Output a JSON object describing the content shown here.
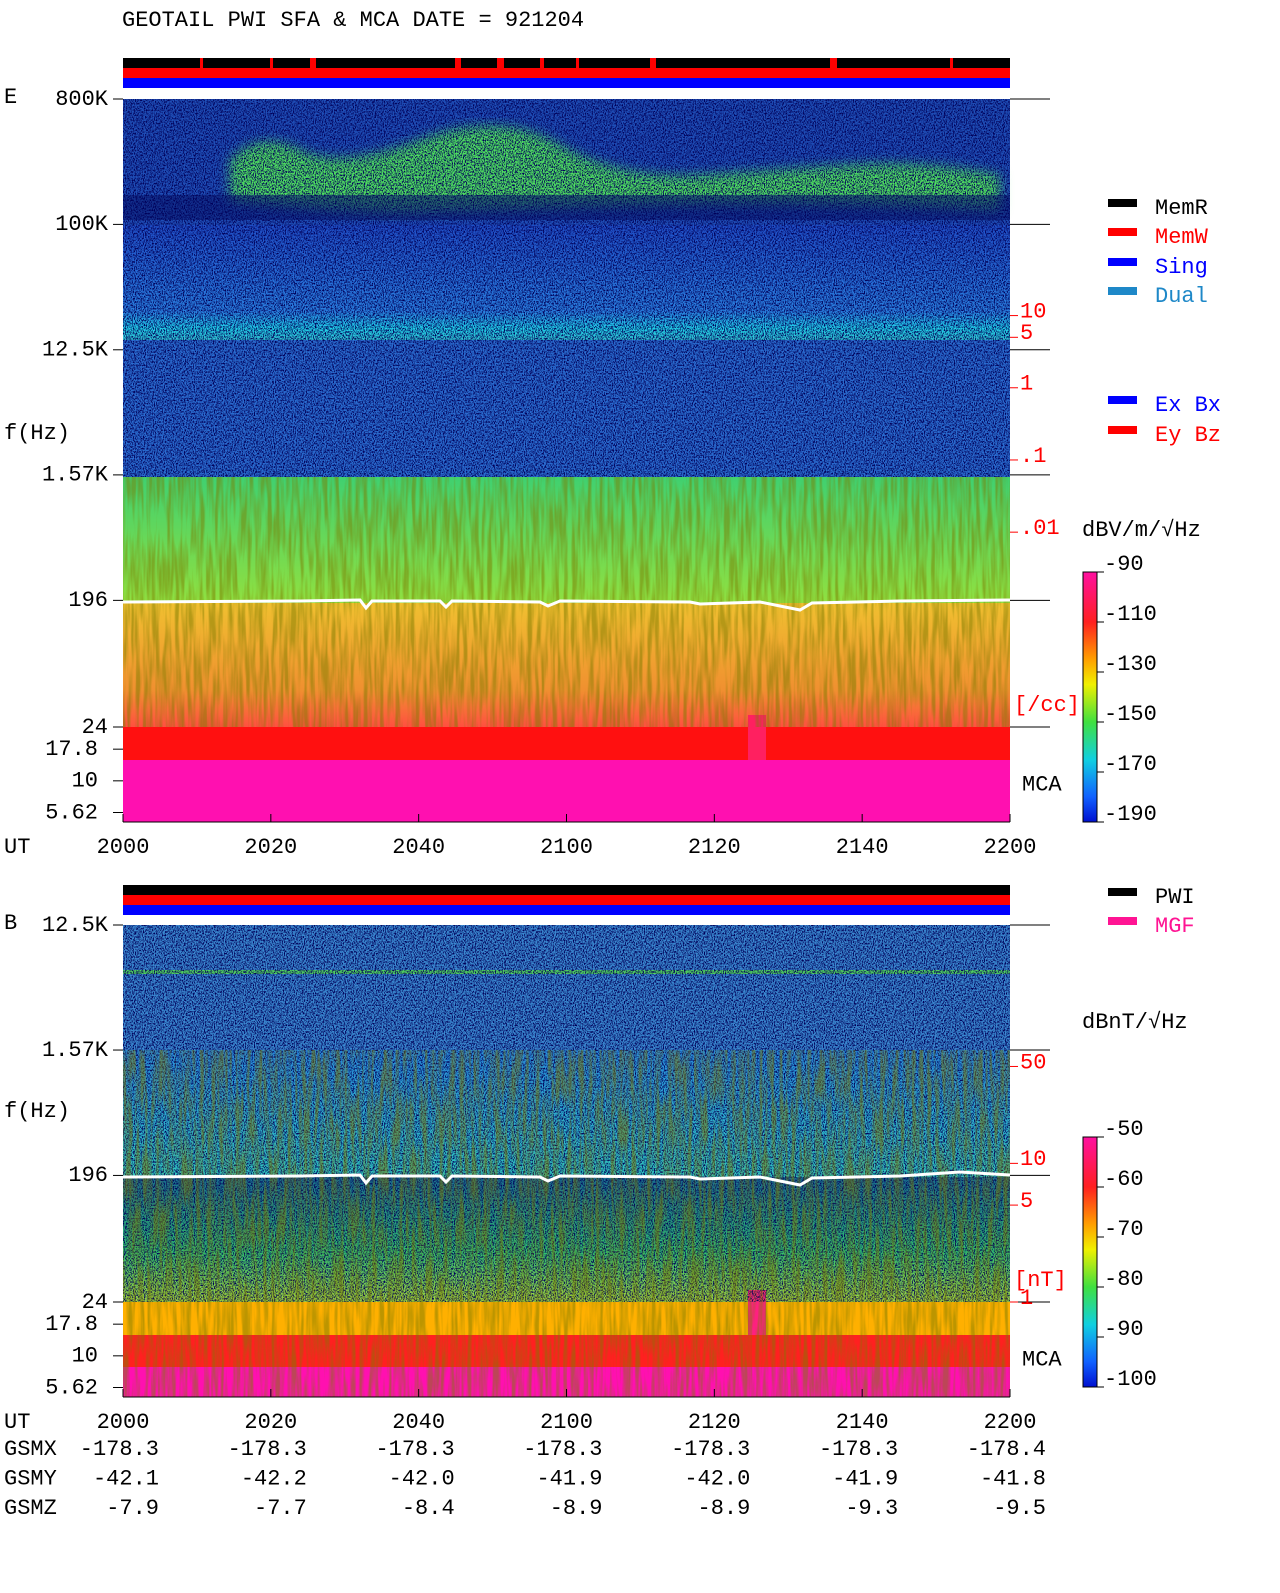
{
  "title": "GEOTAIL  PWI SFA & MCA   DATE = 921204",
  "chart_data": [
    {
      "type": "spectrogram",
      "panel_label": "E",
      "y_label": "f(Hz)",
      "x_label": "UT",
      "mca_label": "MCA",
      "xlim": [
        "2000",
        "2200"
      ],
      "xticks": [
        "2000",
        "2020",
        "2040",
        "2100",
        "2120",
        "2140",
        "2200"
      ],
      "ylim": [
        24,
        800000
      ],
      "log_y": true,
      "yticks": [
        {
          "value": 800000,
          "label": "800K"
        },
        {
          "value": 100000,
          "label": "100K"
        },
        {
          "value": 12500,
          "label": "12.5K"
        },
        {
          "value": 1570,
          "label": "1.57K"
        },
        196,
        24
      ],
      "mca_ticks": [
        17.8,
        10,
        5.62
      ],
      "y2_label": "[/cc]",
      "y2lim": [
        2e-05,
        10000
      ],
      "y2_color": "#ff0000",
      "y2ticks": [
        10,
        5,
        1,
        {
          "value": 0.1,
          "label": ".1"
        },
        {
          "value": 0.01,
          "label": ".01"
        }
      ],
      "colorbar": {
        "label": "dBV/m/√Hz",
        "lim": [
          -190,
          -90
        ],
        "ticks": [
          -90,
          -110,
          -130,
          -150,
          -170,
          -190
        ]
      },
      "legends": [
        [
          {
            "name": "MemR",
            "color": "#000000"
          },
          {
            "name": "MemW",
            "color": "#ff0000"
          },
          {
            "name": "Sing",
            "color": "#0000ff"
          },
          {
            "name": "Dual",
            "color": "#1e88c8"
          }
        ],
        [
          {
            "name": "Ex Bx",
            "color": "#0000ff"
          },
          {
            "name": "Ey Bz",
            "color": "#ff0000"
          }
        ]
      ]
    },
    {
      "type": "spectrogram",
      "panel_label": "B",
      "y_label": "f(Hz)",
      "x_label": "UT",
      "mca_label": "MCA",
      "xlim": [
        "2000",
        "2200"
      ],
      "xticks": [
        "2000",
        "2020",
        "2040",
        "2100",
        "2120",
        "2140",
        "2200"
      ],
      "ylim": [
        24,
        12500
      ],
      "log_y": true,
      "yticks": [
        {
          "value": 12500,
          "label": "12.5K"
        },
        {
          "value": 1570,
          "label": "1.57K"
        },
        196,
        24
      ],
      "mca_ticks": [
        17.8,
        10,
        5.62
      ],
      "y2_label": "[nT]",
      "y2lim": [
        1,
        524
      ],
      "y2_color": "#ff0000",
      "y2ticks": [
        50,
        10,
        5,
        1
      ],
      "colorbar": {
        "label": "dBnT/√Hz",
        "lim": [
          -100,
          -50
        ],
        "ticks": [
          -50,
          -60,
          -70,
          -80,
          -90,
          -100
        ]
      },
      "legends": [
        [
          {
            "name": "PWI",
            "color": "#000000"
          },
          {
            "name": "MGF",
            "color": "#ff1493"
          }
        ]
      ]
    }
  ],
  "orbit": {
    "rows": [
      {
        "name": "GSMX",
        "values": [
          "-178.3",
          "-178.3",
          "-178.3",
          "-178.3",
          "-178.3",
          "-178.3",
          "-178.4"
        ]
      },
      {
        "name": "GSMY",
        "values": [
          "-42.1",
          "-42.2",
          "-42.0",
          "-41.9",
          "-42.0",
          "-41.9",
          "-41.8"
        ]
      },
      {
        "name": "GSMZ",
        "values": [
          "-7.9",
          "-7.7",
          "-8.4",
          "-8.9",
          "-8.9",
          "-9.3",
          "-9.5"
        ]
      }
    ]
  }
}
